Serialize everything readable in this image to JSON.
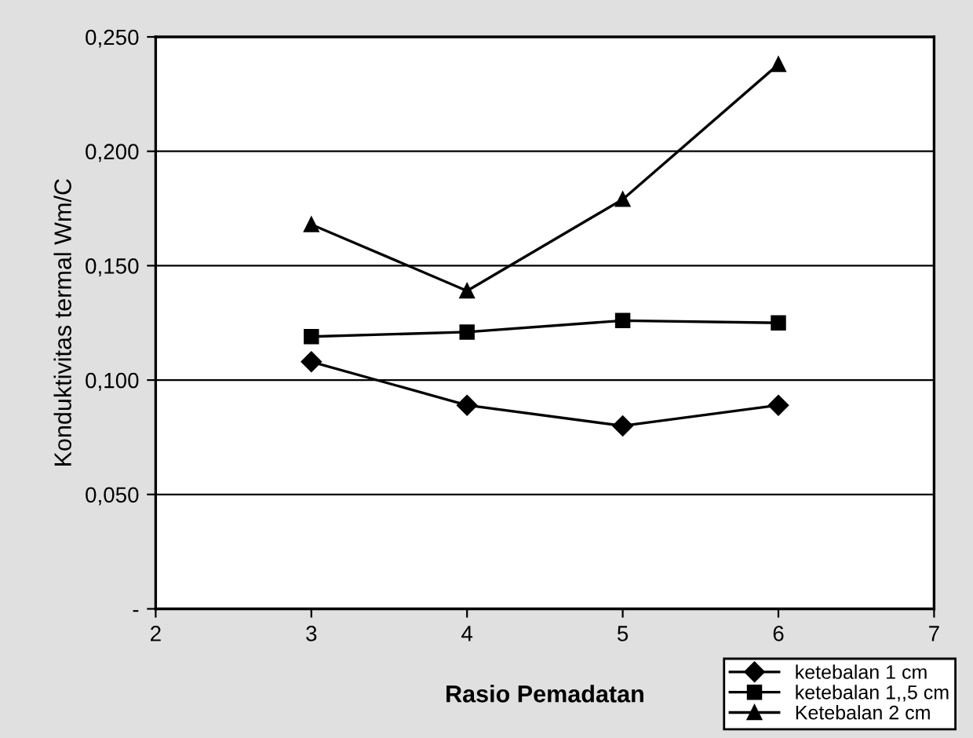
{
  "chart_data": {
    "type": "line",
    "xlabel": "Rasio Pemadatan",
    "ylabel": "Konduktivitas termal Wm/C",
    "x": [
      3,
      4,
      5,
      6
    ],
    "series": [
      {
        "name": "ketebalan 1 cm",
        "color": "#000000",
        "marker": "diamond",
        "values": [
          0.108,
          0.089,
          0.08,
          0.089
        ]
      },
      {
        "name": "ketebalan 1,,5 cm",
        "color": "#000000",
        "marker": "square",
        "values": [
          0.119,
          0.121,
          0.126,
          0.125
        ]
      },
      {
        "name": "Ketebalan 2 cm",
        "color": "#000000",
        "marker": "triangle",
        "values": [
          0.168,
          0.139,
          0.179,
          0.238
        ]
      }
    ],
    "xlim": [
      2,
      7
    ],
    "xticks": [
      2,
      3,
      4,
      5,
      6,
      7
    ],
    "ylim": [
      0,
      0.25
    ],
    "yticks": [
      {
        "value": 0,
        "label": "-"
      },
      {
        "value": 0.05,
        "label": "0,050"
      },
      {
        "value": 0.1,
        "label": "0,100"
      },
      {
        "value": 0.15,
        "label": "0,150"
      },
      {
        "value": 0.2,
        "label": "0,200"
      },
      {
        "value": 0.25,
        "label": "0,250"
      }
    ],
    "grid": "y",
    "legend": "bottom right",
    "line_style": "solid"
  }
}
